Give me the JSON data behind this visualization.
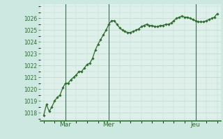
{
  "background_color": "#cce8e0",
  "plot_bg_color": "#dff0ea",
  "grid_color": "#b8d8d0",
  "line_color": "#2d6e2d",
  "marker_color": "#2d6e2d",
  "ylim": [
    1017.3,
    1027.2
  ],
  "yticks": [
    1018,
    1019,
    1020,
    1021,
    1022,
    1023,
    1024,
    1025,
    1026
  ],
  "xlabel_ticks": [
    "Mar",
    "Mer",
    "Jeu"
  ],
  "xlabel_tick_positions": [
    24,
    72,
    168
  ],
  "vline_positions": [
    24,
    72,
    168
  ],
  "x_values": [
    0,
    3,
    6,
    9,
    12,
    15,
    18,
    21,
    24,
    27,
    30,
    33,
    36,
    39,
    42,
    45,
    48,
    51,
    54,
    57,
    60,
    63,
    66,
    69,
    72,
    75,
    78,
    81,
    84,
    87,
    90,
    93,
    96,
    99,
    102,
    105,
    108,
    111,
    114,
    117,
    120,
    123,
    126,
    129,
    132,
    135,
    138,
    141,
    144,
    147,
    150,
    153,
    156,
    159,
    162,
    165,
    168,
    171,
    174,
    177,
    180,
    183,
    186,
    189,
    192
  ],
  "y_values": [
    1017.8,
    1018.7,
    1018.1,
    1018.5,
    1019.0,
    1019.3,
    1019.5,
    1020.1,
    1020.5,
    1020.5,
    1020.8,
    1021.0,
    1021.2,
    1021.5,
    1021.5,
    1021.8,
    1022.1,
    1022.2,
    1022.6,
    1023.3,
    1023.8,
    1024.2,
    1024.6,
    1025.0,
    1025.5,
    1025.8,
    1025.8,
    1025.5,
    1025.2,
    1025.0,
    1024.9,
    1024.8,
    1024.8,
    1024.9,
    1025.0,
    1025.1,
    1025.3,
    1025.4,
    1025.5,
    1025.4,
    1025.4,
    1025.3,
    1025.3,
    1025.4,
    1025.4,
    1025.5,
    1025.5,
    1025.6,
    1025.8,
    1026.0,
    1026.1,
    1026.2,
    1026.1,
    1026.1,
    1026.0,
    1025.9,
    1025.8,
    1025.7,
    1025.7,
    1025.7,
    1025.8,
    1025.9,
    1026.0,
    1026.1,
    1026.4
  ]
}
